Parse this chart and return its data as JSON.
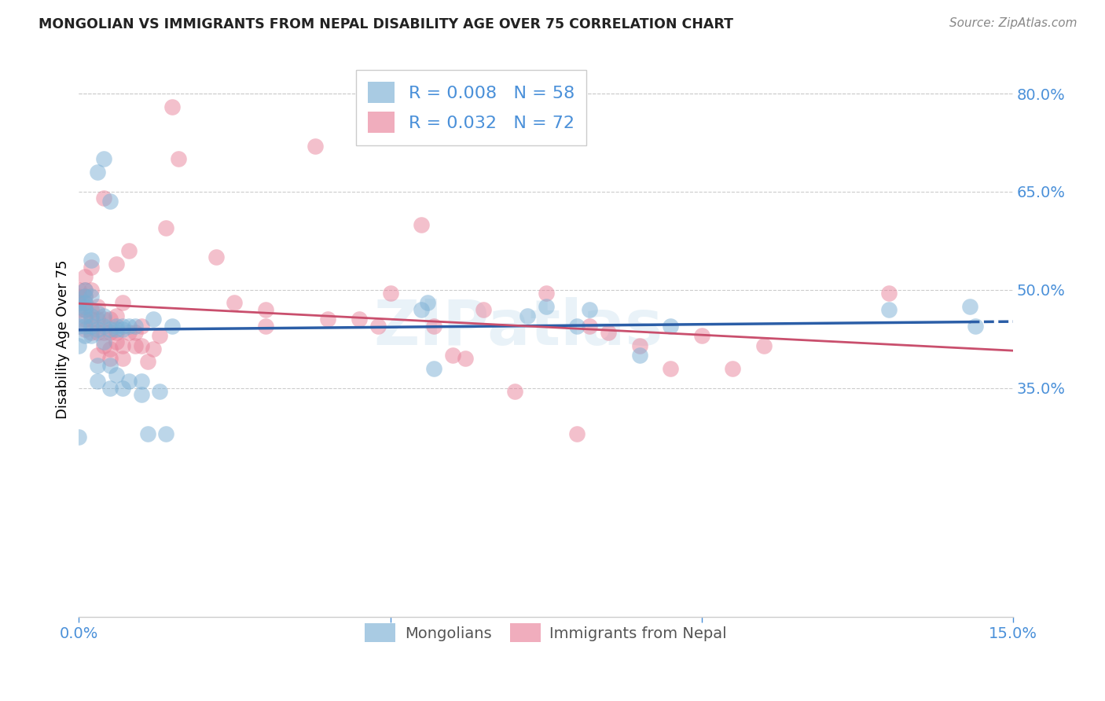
{
  "title": "MONGOLIAN VS IMMIGRANTS FROM NEPAL DISABILITY AGE OVER 75 CORRELATION CHART",
  "source": "Source: ZipAtlas.com",
  "accent_color": "#4a90d9",
  "ylabel": "Disability Age Over 75",
  "xlim": [
    0.0,
    0.15
  ],
  "ylim": [
    0.0,
    0.85
  ],
  "ytick_labels_right": [
    "80.0%",
    "65.0%",
    "50.0%",
    "35.0%"
  ],
  "ytick_positions_right": [
    0.8,
    0.65,
    0.5,
    0.35
  ],
  "mongolian_R": "0.008",
  "mongolian_N": "58",
  "nepal_R": "0.032",
  "nepal_N": "72",
  "mongolian_color": "#7bafd4",
  "nepal_color": "#e8829a",
  "mongolian_line_color": "#2b5ea7",
  "nepal_line_color": "#c94f6d",
  "watermark": "ZIPatlas",
  "mongolians_x": [
    0.0,
    0.0,
    0.0,
    0.0,
    0.001,
    0.001,
    0.001,
    0.001,
    0.001,
    0.001,
    0.001,
    0.001,
    0.002,
    0.002,
    0.002,
    0.002,
    0.002,
    0.003,
    0.003,
    0.003,
    0.003,
    0.004,
    0.004,
    0.004,
    0.005,
    0.005,
    0.005,
    0.006,
    0.006,
    0.007,
    0.007,
    0.008,
    0.009,
    0.01,
    0.01,
    0.011,
    0.012,
    0.013,
    0.014,
    0.015,
    0.055,
    0.056,
    0.057,
    0.072,
    0.075,
    0.08,
    0.082,
    0.09,
    0.095,
    0.13,
    0.143,
    0.144,
    0.003,
    0.004,
    0.005,
    0.006,
    0.007,
    0.008
  ],
  "mongolians_y": [
    0.275,
    0.415,
    0.445,
    0.48,
    0.43,
    0.445,
    0.46,
    0.47,
    0.475,
    0.48,
    0.49,
    0.5,
    0.43,
    0.445,
    0.46,
    0.49,
    0.545,
    0.36,
    0.385,
    0.44,
    0.465,
    0.42,
    0.445,
    0.46,
    0.35,
    0.385,
    0.44,
    0.37,
    0.445,
    0.35,
    0.445,
    0.36,
    0.445,
    0.34,
    0.36,
    0.28,
    0.455,
    0.345,
    0.28,
    0.445,
    0.47,
    0.48,
    0.38,
    0.46,
    0.475,
    0.445,
    0.47,
    0.4,
    0.445,
    0.47,
    0.475,
    0.445,
    0.68,
    0.7,
    0.635,
    0.44,
    0.44,
    0.445
  ],
  "nepal_x": [
    0.0,
    0.0,
    0.0,
    0.0,
    0.001,
    0.001,
    0.001,
    0.001,
    0.001,
    0.001,
    0.001,
    0.002,
    0.002,
    0.002,
    0.002,
    0.002,
    0.003,
    0.003,
    0.003,
    0.003,
    0.004,
    0.004,
    0.004,
    0.004,
    0.005,
    0.005,
    0.005,
    0.005,
    0.006,
    0.006,
    0.006,
    0.006,
    0.007,
    0.007,
    0.007,
    0.008,
    0.008,
    0.009,
    0.009,
    0.01,
    0.01,
    0.011,
    0.012,
    0.013,
    0.014,
    0.015,
    0.016,
    0.022,
    0.025,
    0.03,
    0.03,
    0.038,
    0.04,
    0.045,
    0.048,
    0.05,
    0.055,
    0.057,
    0.06,
    0.062,
    0.065,
    0.07,
    0.075,
    0.08,
    0.082,
    0.085,
    0.09,
    0.095,
    0.1,
    0.105,
    0.11,
    0.13
  ],
  "nepal_y": [
    0.47,
    0.48,
    0.49,
    0.5,
    0.44,
    0.455,
    0.47,
    0.48,
    0.49,
    0.5,
    0.52,
    0.435,
    0.455,
    0.47,
    0.5,
    0.535,
    0.4,
    0.435,
    0.455,
    0.475,
    0.415,
    0.435,
    0.455,
    0.64,
    0.395,
    0.41,
    0.435,
    0.455,
    0.42,
    0.435,
    0.46,
    0.54,
    0.395,
    0.415,
    0.48,
    0.435,
    0.56,
    0.415,
    0.435,
    0.415,
    0.445,
    0.39,
    0.41,
    0.43,
    0.595,
    0.78,
    0.7,
    0.55,
    0.48,
    0.47,
    0.445,
    0.72,
    0.455,
    0.455,
    0.445,
    0.495,
    0.6,
    0.445,
    0.4,
    0.395,
    0.47,
    0.345,
    0.495,
    0.28,
    0.445,
    0.435,
    0.415,
    0.38,
    0.43,
    0.38,
    0.415,
    0.495
  ]
}
